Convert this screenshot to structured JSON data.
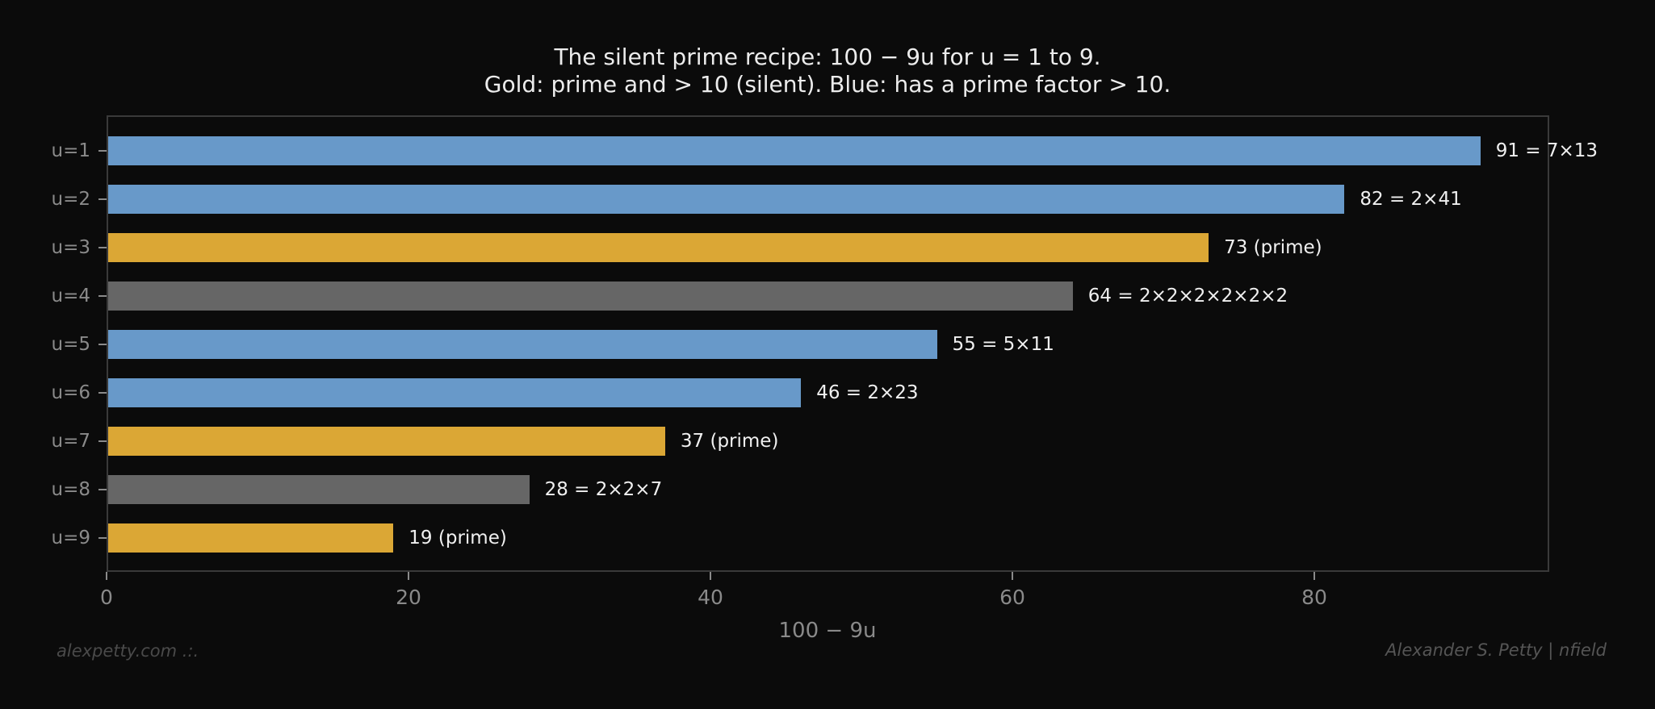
{
  "chart_data": {
    "type": "bar",
    "orientation": "horizontal",
    "title": "The silent prime recipe: 100 − 9u for u = 1 to 9.",
    "subtitle": "Gold: prime and > 10 (silent). Blue: has a prime factor > 10.",
    "xlabel": "100 − 9u",
    "ylabel": "",
    "xlim": [
      0,
      95.55
    ],
    "x_ticks": [
      0,
      20,
      40,
      60,
      80
    ],
    "grid": false,
    "legend": null,
    "categories": [
      "u=1",
      "u=2",
      "u=3",
      "u=4",
      "u=5",
      "u=6",
      "u=7",
      "u=8",
      "u=9"
    ],
    "values": [
      91,
      82,
      73,
      64,
      55,
      46,
      37,
      28,
      19
    ],
    "bar_labels": [
      "91 = 7×13",
      "82 = 2×41",
      "73 (prime)",
      "64 = 2×2×2×2×2×2",
      "55 = 5×11",
      "46 = 2×23",
      "37 (prime)",
      "28 = 2×2×7",
      "19 (prime)"
    ],
    "bar_classes": [
      "blue",
      "blue",
      "gold",
      "gray",
      "blue",
      "blue",
      "gold",
      "gray",
      "gold"
    ],
    "colors": {
      "blue": "#6899c9",
      "gold": "#dba735",
      "gray": "#666666"
    }
  },
  "footer": {
    "left": "alexpetty.com  .:.",
    "right": "Alexander S. Petty  |  nfield"
  }
}
